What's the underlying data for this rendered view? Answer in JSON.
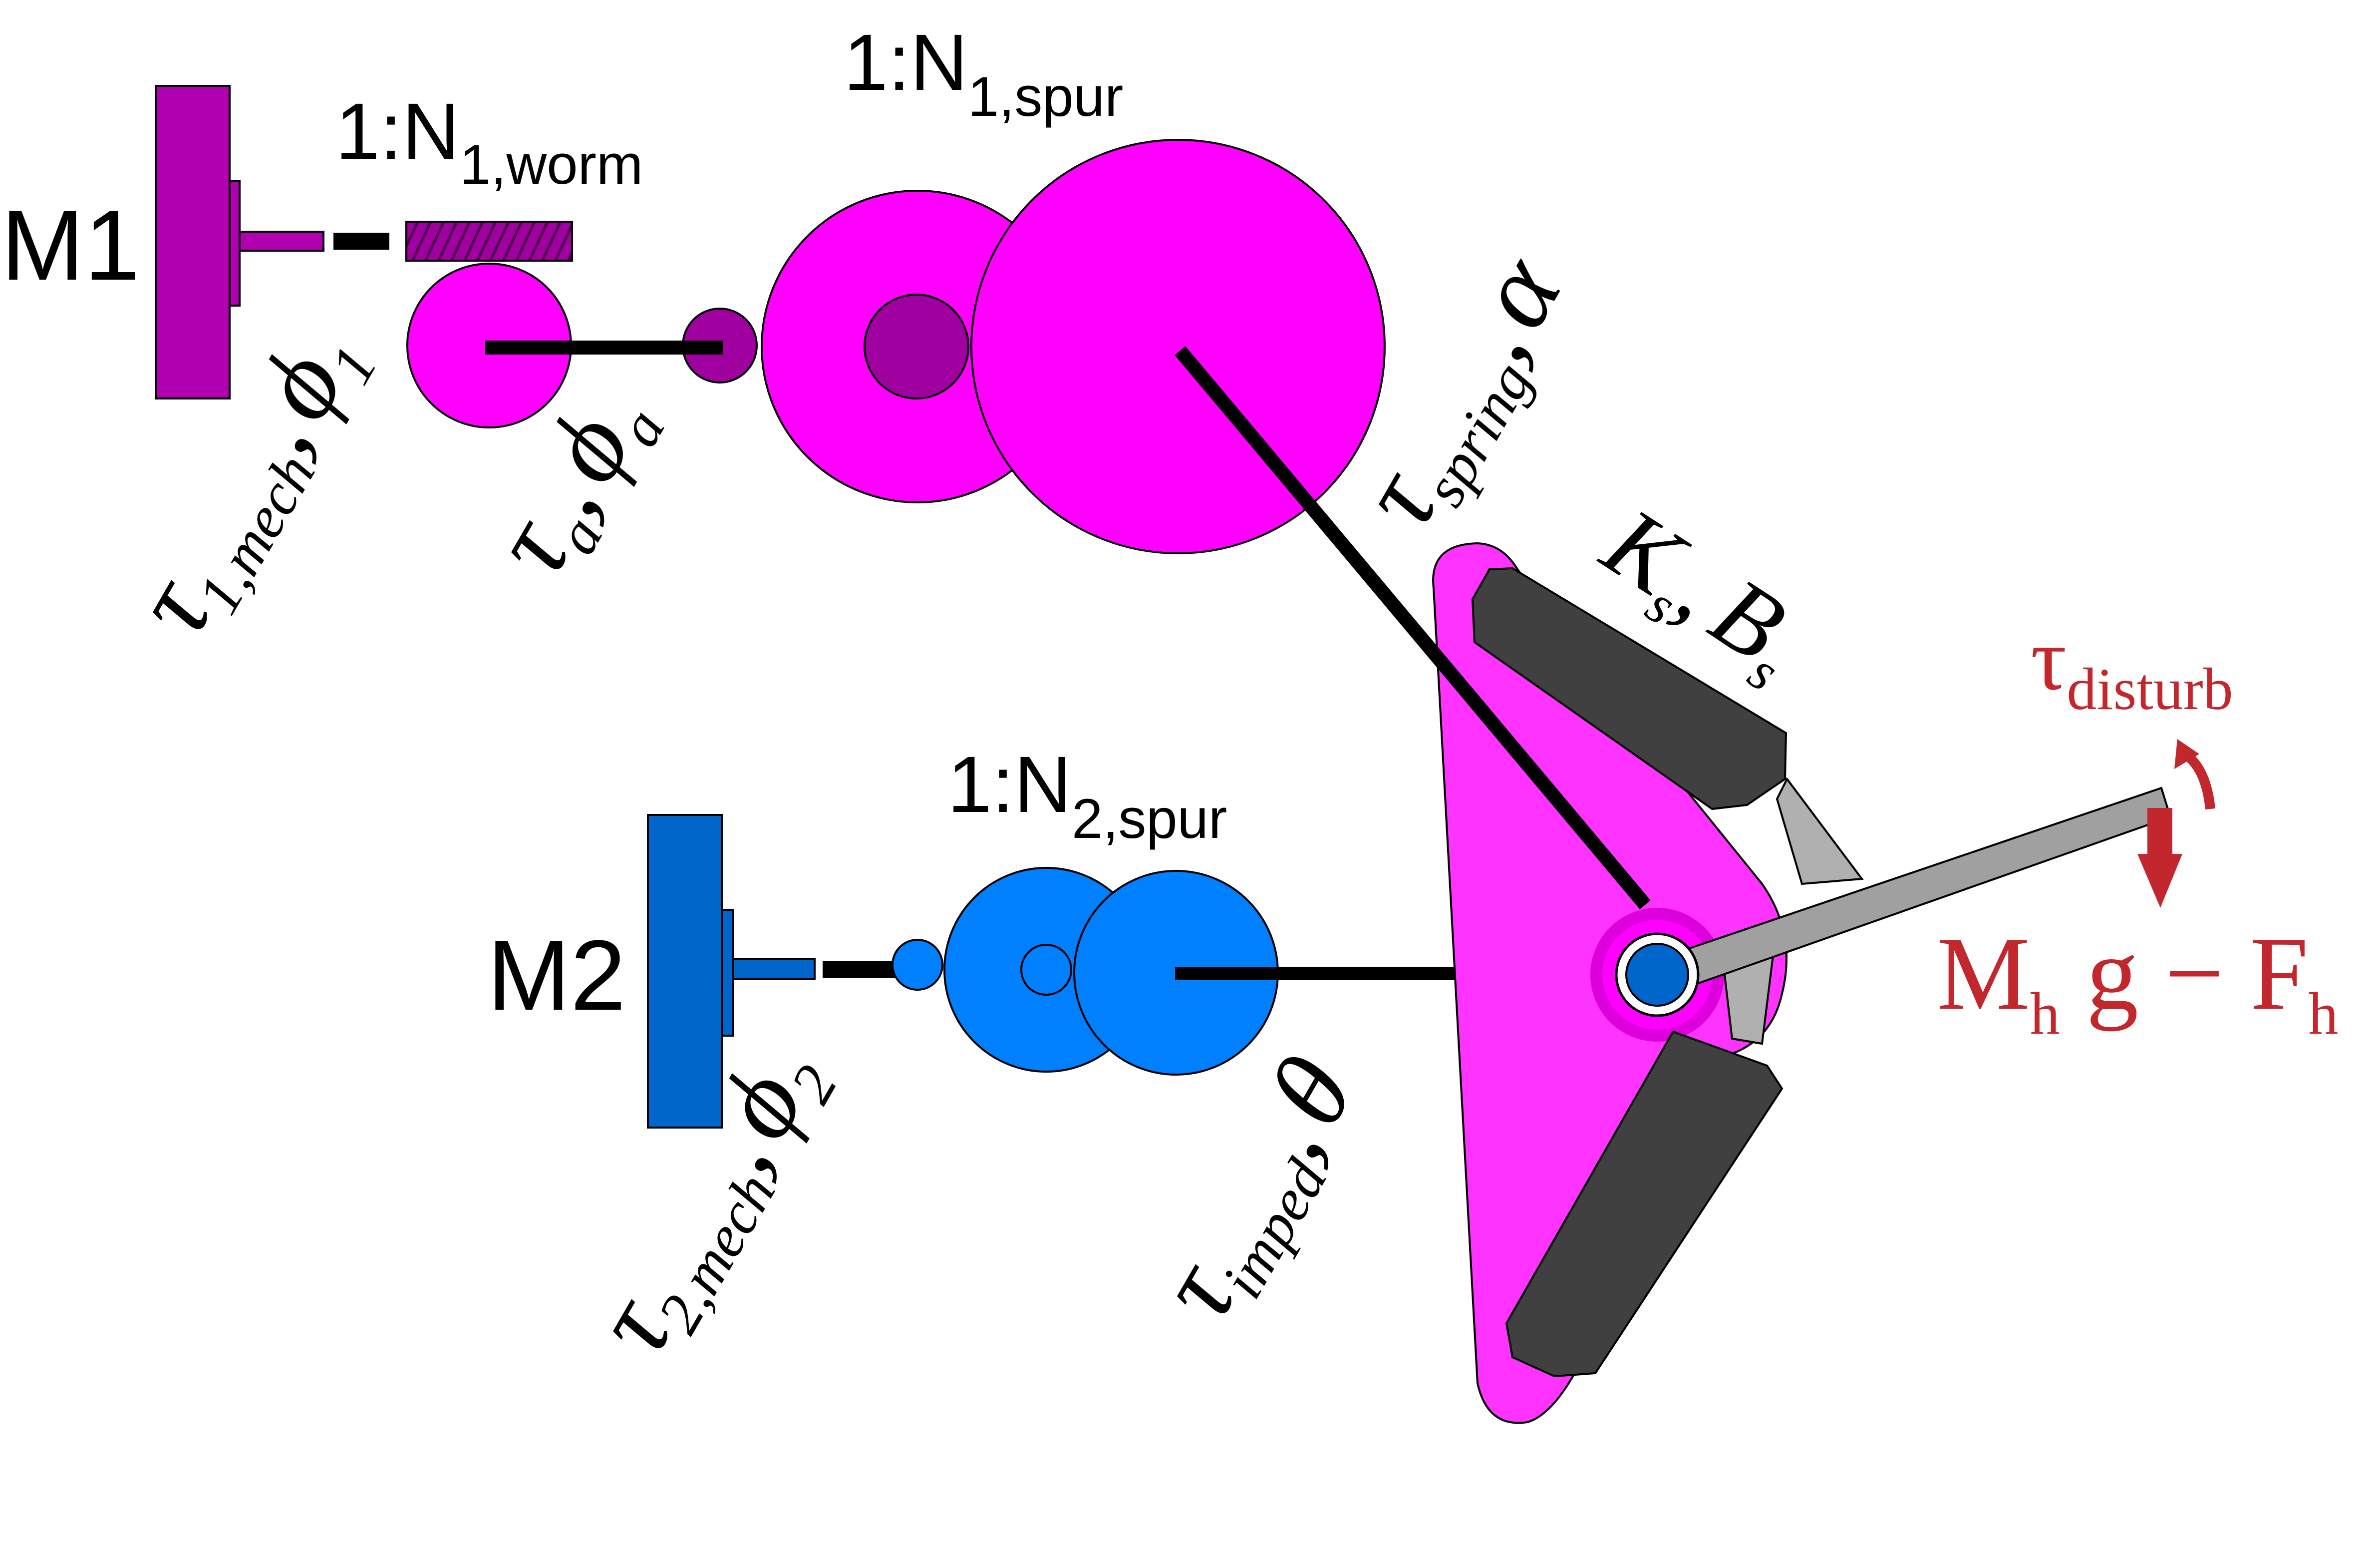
{
  "colors": {
    "magenta": "#ff00ff",
    "magenta_light": "#ff33ff",
    "purple": "#b000b0",
    "dark_purple": "#a000a0",
    "blue": "#0080ff",
    "blue_dark": "#0060c8",
    "gray_dark": "#404040",
    "gray_rod": "#a0a0a0",
    "red": "#c1272d"
  },
  "labels": {
    "m1": "M1",
    "m2": "M2",
    "worm_ratio_prefix": "1:N",
    "worm_ratio_sub": "1,worm",
    "spur1_prefix": "1:N",
    "spur1_sub": "1,spur",
    "spur2_prefix": "1:N",
    "spur2_sub": "2,spur",
    "tau": "τ",
    "phi": "ϕ",
    "comma": ",",
    "tau1_sub": "1,mech",
    "phi1_sub": "1",
    "taua_sub": "a",
    "phia_sub": "a",
    "tau_spring_sub": "spring",
    "alpha": "α",
    "k": "K",
    "k_sub": "s",
    "b": "B",
    "b_sub": "s",
    "tau2_sub": "2,mech",
    "phi2_sub": "2",
    "tau_imped_sub": "imped",
    "theta": "θ",
    "tau_disturb_sub": "disturb",
    "m_h": "M",
    "m_h_sub": "h",
    "g_minus": " g − F",
    "f_h_sub": "h"
  },
  "icons": {
    "motor1": "motor-icon",
    "motor2": "motor-icon",
    "disturb_arrow": "curved-arrow-icon",
    "load_arrow": "down-arrow-icon"
  }
}
